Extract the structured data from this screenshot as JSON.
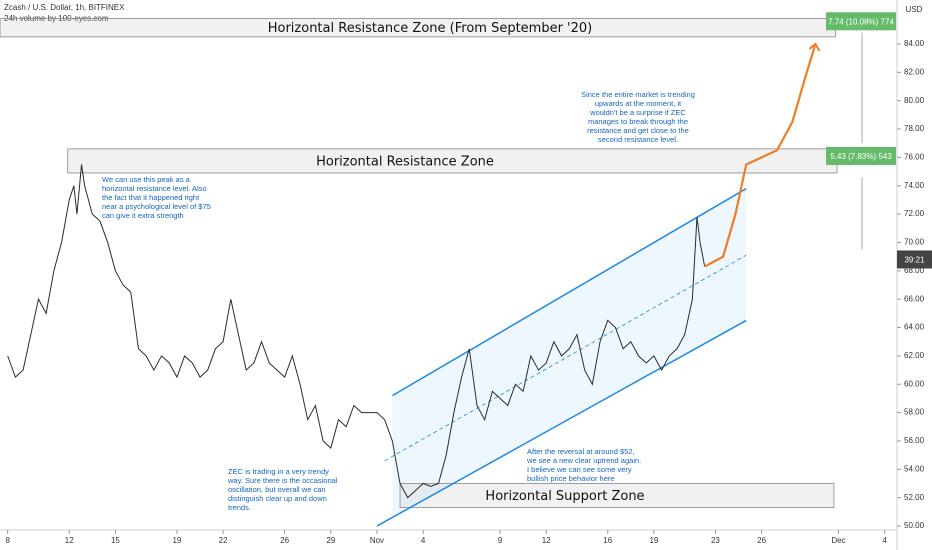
{
  "header": {
    "symbol": "Zcash / U.S. Dollar, 1h, BITFINEX",
    "volume": "24h volume by 100-eyes.com",
    "currency": "USD"
  },
  "chart_data": {
    "type": "line",
    "x": [
      8,
      8.5,
      9,
      9.5,
      10,
      10.5,
      11,
      11.5,
      12,
      12.3,
      12.5,
      12.8,
      13,
      13.5,
      14,
      14.5,
      15,
      15.5,
      16,
      16.5,
      17,
      17.5,
      18,
      18.5,
      19,
      19.5,
      20,
      20.5,
      21,
      21.5,
      22,
      22.5,
      23,
      23.5,
      24,
      24.5,
      25,
      26,
      26.5,
      27,
      27.5,
      28,
      28.5,
      29,
      29.5,
      30,
      30.5,
      31,
      32,
      32.5,
      33,
      33.5,
      34,
      34.5,
      35,
      35.5,
      36,
      36.5,
      37,
      37.5,
      38,
      38.5,
      39,
      39.5,
      40,
      40.5,
      41,
      41.5,
      42,
      42.5,
      43,
      43.5,
      44,
      44.5,
      45,
      45.5,
      46,
      46.5,
      47,
      47.5,
      48,
      48.5,
      49,
      49.5,
      50,
      50.5,
      51,
      51.5,
      52,
      52.5,
      52.8,
      53,
      53.3
    ],
    "series": [
      {
        "color": "#2b2b2b",
        "values": [
          62,
          60.5,
          61,
          63.5,
          66,
          65,
          68,
          70,
          73,
          74,
          72,
          75.5,
          74,
          72,
          71.5,
          70,
          68,
          67,
          66.5,
          62.5,
          62,
          61,
          62,
          61.5,
          60.5,
          62,
          61.5,
          60.5,
          61,
          62.5,
          63,
          66,
          63.5,
          61,
          61.5,
          63,
          61.5,
          60.5,
          62,
          60,
          57.5,
          58.5,
          56,
          55.5,
          57.5,
          57,
          58.5,
          58,
          58,
          57.5,
          56,
          53,
          52,
          52.5,
          53,
          52.8,
          53,
          55,
          58,
          60.5,
          62.5,
          58.5,
          57.5,
          59.5,
          59,
          58.5,
          60,
          59.5,
          62,
          61,
          61.5,
          63,
          62,
          62.5,
          63.5,
          61,
          60,
          63,
          64.5,
          64,
          62.5,
          63,
          62,
          61.5,
          62,
          61,
          62,
          62.5,
          63.5,
          66,
          71.8,
          70,
          68.3
        ]
      }
    ],
    "projection": {
      "color": "#ef7d22",
      "x": [
        53.3,
        54.5,
        55.3,
        56,
        57,
        58,
        59,
        59.8,
        60.5
      ],
      "values": [
        68.3,
        69,
        72,
        75.5,
        76,
        76.5,
        78.5,
        81.5,
        84
      ]
    },
    "channel": [
      {
        "color": "#1e88e5",
        "x": [
          33,
          56
        ],
        "values": [
          59.2,
          73.8
        ]
      },
      {
        "color": "#1e88e5",
        "x": [
          32,
          56
        ],
        "values": [
          50,
          64.5
        ]
      },
      {
        "color": "#1e88e5",
        "dashed": true,
        "x": [
          32.5,
          56
        ],
        "values": [
          54.6,
          69.1
        ]
      }
    ],
    "zones": [
      {
        "label": "Horizontal Resistance Zone (From September '20)",
        "x": [
          7.5,
          61.8
        ],
        "range": [
          84.5,
          85.8
        ]
      },
      {
        "label": "Horizontal Resistance Zone",
        "x": [
          11.9,
          61.9
        ],
        "range": [
          74.9,
          76.6
        ]
      },
      {
        "label": "Horizontal Support Zone",
        "x": [
          33.5,
          61.7
        ],
        "range": [
          51.3,
          53.0
        ]
      }
    ],
    "price_labels": [
      {
        "label": "7.74 (10.08%) 774",
        "value": 85.6,
        "color": "#66bb6a"
      },
      {
        "label": "5.43 (7.83%) 543",
        "value": 76.1,
        "color": "#66bb6a"
      },
      {
        "label": "39:21",
        "value": 68.8,
        "color": "#444444"
      }
    ],
    "annotations": [
      {
        "lines": [
          "We can use this peak as a",
          "horizontal resistance level. Also",
          "the fact that it happened right",
          "near a psychological level of $75",
          "can give it extra strength"
        ]
      },
      {
        "lines": [
          "ZEC is trading in a very trendy",
          "way. Sure there is the occasional",
          "oscillation, but overall we can",
          "distinguish clear up and down",
          "trends."
        ]
      },
      {
        "lines": [
          "After the reversal at around $52,",
          "we see a new clear uptrend again.",
          "I believe we can see some very",
          "bullish price behavior here"
        ]
      },
      {
        "lines": [
          "Since the entire market is trending",
          "upwards at the moment, it",
          "wouldn't be a surprise if ZEC",
          "manages to break through the",
          "resistance and get close to the",
          "second resistance level."
        ]
      }
    ],
    "xlim": [
      7.5,
      65.8
    ],
    "ylim": [
      49.72,
      87.1
    ],
    "xticks": [
      8,
      12,
      15,
      19,
      22,
      26,
      29,
      {
        "value": 32,
        "label": "Nov"
      },
      {
        "value": 35,
        "label": "4"
      },
      {
        "value": 40,
        "label": "9"
      },
      {
        "value": 43,
        "label": "12"
      },
      {
        "value": 47,
        "label": "16"
      },
      {
        "value": 50,
        "label": "19"
      },
      {
        "value": 54,
        "label": "23"
      },
      {
        "value": 57,
        "label": "26"
      },
      {
        "value": 62,
        "label": "Dec"
      },
      {
        "value": 65,
        "label": "4"
      }
    ],
    "yticks": [
      {
        "value": 50,
        "label": "50.00"
      },
      {
        "value": 52,
        "label": "52.00"
      },
      {
        "value": 54,
        "label": "54.00"
      },
      {
        "value": 56,
        "label": "56.00"
      },
      {
        "value": 58,
        "label": "58.00"
      },
      {
        "value": 60,
        "label": "60.00"
      },
      {
        "value": 62,
        "label": "62.00"
      },
      {
        "value": 64,
        "label": "64.00"
      },
      {
        "value": 66,
        "label": "66.00"
      },
      {
        "value": 68,
        "label": "68.00"
      },
      {
        "value": 70,
        "label": "70.00"
      },
      {
        "value": 72,
        "label": "72.00"
      },
      {
        "value": 74,
        "label": "74.00"
      },
      {
        "value": 76,
        "label": "76.00"
      },
      {
        "value": 78,
        "label": "78.00"
      },
      {
        "value": 80,
        "label": "80.00"
      },
      {
        "value": 82,
        "label": "82.00"
      },
      {
        "value": 84,
        "label": "84.00"
      }
    ]
  }
}
